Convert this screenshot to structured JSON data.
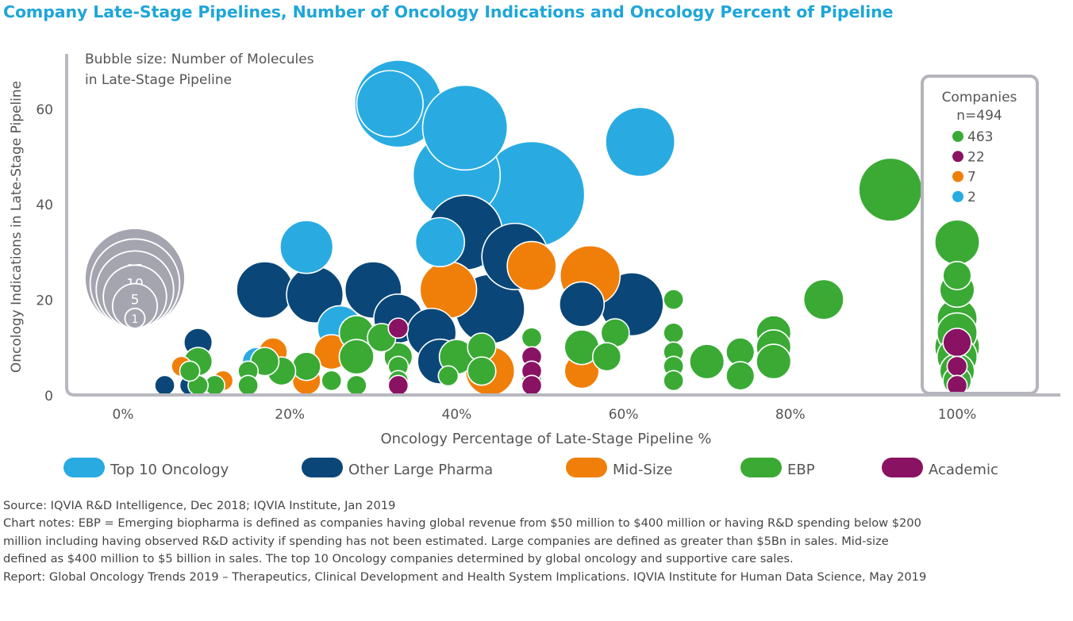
{
  "title": "Company Late-Stage Pipelines, Number of Oncology Indications and Oncology Percent of Pipeline",
  "colors": {
    "Top 10 Oncology": "#29abe2",
    "Other Large Pharma": "#0a4778",
    "Mid-Size": "#f07f09",
    "EBP": "#3aaa35",
    "Academic": "#891263",
    "size_key": "#a5a5b0",
    "box": "#b4b4bc",
    "axis": "#b8b8c0"
  },
  "chart_data": {
    "type": "scatter",
    "subtype": "bubble",
    "xlabel": "Oncology Percentage of Late-Stage Pipeline %",
    "ylabel": "Oncology Indications in Late-Stage Pipeline",
    "xlim": [
      -0.06,
      1.11
    ],
    "ylim": [
      0,
      72
    ],
    "x_ticks": [
      0,
      0.2,
      0.4,
      0.6,
      0.8,
      1.0
    ],
    "x_tick_labels": [
      "0%",
      "20%",
      "40%",
      "60%",
      "80%",
      "100%"
    ],
    "y_ticks": [
      0,
      20,
      40,
      60
    ],
    "y_tick_labels": [
      "0",
      "20",
      "40",
      "60"
    ],
    "size_legend": {
      "title_line1": "Bubble size: Number of Molecules",
      "title_line2": "in Late-Stage Pipeline",
      "sizes": [
        25,
        20,
        15,
        10,
        5,
        1
      ]
    },
    "companies_box": {
      "title": "Companies",
      "total": "n=494",
      "counts": [
        {
          "series": "EBP",
          "value": "463"
        },
        {
          "series": "Academic",
          "value": "22"
        },
        {
          "series": "Mid-Size",
          "value": "7"
        },
        {
          "series": "Top 10 Oncology",
          "value": "2"
        }
      ]
    },
    "series": [
      {
        "name": "Top 10 Oncology",
        "points": [
          {
            "x": 0.33,
            "y": 61,
            "molecules": 19
          },
          {
            "x": 0.32,
            "y": 61,
            "molecules": 11
          },
          {
            "x": 0.41,
            "y": 56,
            "molecules": 18
          },
          {
            "x": 0.4,
            "y": 46,
            "molecules": 19
          },
          {
            "x": 0.49,
            "y": 42,
            "molecules": 28
          },
          {
            "x": 0.62,
            "y": 53,
            "molecules": 12
          },
          {
            "x": 0.38,
            "y": 32,
            "molecules": 6
          },
          {
            "x": 0.22,
            "y": 31,
            "molecules": 7
          },
          {
            "x": 0.26,
            "y": 14,
            "molecules": 5
          },
          {
            "x": 0.16,
            "y": 7,
            "molecules": 2
          }
        ]
      },
      {
        "name": "Other Large Pharma",
        "points": [
          {
            "x": 0.41,
            "y": 34,
            "molecules": 14
          },
          {
            "x": 0.47,
            "y": 29,
            "molecules": 11
          },
          {
            "x": 0.44,
            "y": 18,
            "molecules": 12
          },
          {
            "x": 0.17,
            "y": 22,
            "molecules": 8
          },
          {
            "x": 0.23,
            "y": 21,
            "molecules": 8
          },
          {
            "x": 0.3,
            "y": 22,
            "molecules": 8
          },
          {
            "x": 0.33,
            "y": 16,
            "molecules": 6
          },
          {
            "x": 0.37,
            "y": 13,
            "molecules": 6
          },
          {
            "x": 0.38,
            "y": 7,
            "molecules": 5
          },
          {
            "x": 0.55,
            "y": 19,
            "molecules": 5
          },
          {
            "x": 0.61,
            "y": 19,
            "molecules": 10
          },
          {
            "x": 0.09,
            "y": 11,
            "molecules": 2
          },
          {
            "x": 0.05,
            "y": 2,
            "molecules": 1
          },
          {
            "x": 0.08,
            "y": 2,
            "molecules": 1
          }
        ]
      },
      {
        "name": "Mid-Size",
        "points": [
          {
            "x": 0.49,
            "y": 27,
            "molecules": 6
          },
          {
            "x": 0.56,
            "y": 25,
            "molecules": 9
          },
          {
            "x": 0.39,
            "y": 22,
            "molecules": 8
          },
          {
            "x": 0.44,
            "y": 5,
            "molecules": 6
          },
          {
            "x": 0.55,
            "y": 5,
            "molecules": 3
          },
          {
            "x": 0.25,
            "y": 9,
            "molecules": 3
          },
          {
            "x": 0.18,
            "y": 9,
            "molecules": 2
          },
          {
            "x": 0.07,
            "y": 6,
            "molecules": 1
          },
          {
            "x": 0.12,
            "y": 3,
            "molecules": 1
          },
          {
            "x": 0.22,
            "y": 3,
            "molecules": 2
          }
        ]
      },
      {
        "name": "EBP",
        "points": [
          {
            "x": 0.92,
            "y": 43,
            "molecules": 10
          },
          {
            "x": 1.0,
            "y": 32,
            "molecules": 5
          },
          {
            "x": 1.0,
            "y": 25,
            "molecules": 2
          },
          {
            "x": 1.0,
            "y": 22,
            "molecules": 3
          },
          {
            "x": 1.0,
            "y": 16,
            "molecules": 4
          },
          {
            "x": 1.0,
            "y": 13,
            "molecules": 4
          },
          {
            "x": 1.0,
            "y": 10,
            "molecules": 5
          },
          {
            "x": 1.0,
            "y": 8,
            "molecules": 4
          },
          {
            "x": 1.0,
            "y": 5,
            "molecules": 3
          },
          {
            "x": 1.0,
            "y": 3,
            "molecules": 2
          },
          {
            "x": 0.84,
            "y": 20,
            "molecules": 4
          },
          {
            "x": 0.78,
            "y": 13,
            "molecules": 3
          },
          {
            "x": 0.78,
            "y": 10,
            "molecules": 3
          },
          {
            "x": 0.78,
            "y": 7,
            "molecules": 3
          },
          {
            "x": 0.74,
            "y": 9,
            "molecules": 2
          },
          {
            "x": 0.74,
            "y": 4,
            "molecules": 2
          },
          {
            "x": 0.7,
            "y": 7,
            "molecules": 3
          },
          {
            "x": 0.66,
            "y": 20,
            "molecules": 1
          },
          {
            "x": 0.66,
            "y": 13,
            "molecules": 1
          },
          {
            "x": 0.66,
            "y": 9,
            "molecules": 1
          },
          {
            "x": 0.66,
            "y": 6,
            "molecules": 1
          },
          {
            "x": 0.66,
            "y": 3,
            "molecules": 1
          },
          {
            "x": 0.59,
            "y": 13,
            "molecules": 2
          },
          {
            "x": 0.58,
            "y": 8,
            "molecules": 2
          },
          {
            "x": 0.55,
            "y": 10,
            "molecules": 3
          },
          {
            "x": 0.49,
            "y": 12,
            "molecules": 1
          },
          {
            "x": 0.49,
            "y": 8,
            "molecules": 1
          },
          {
            "x": 0.49,
            "y": 3,
            "molecules": 1
          },
          {
            "x": 0.43,
            "y": 10,
            "molecules": 2
          },
          {
            "x": 0.43,
            "y": 5,
            "molecules": 2
          },
          {
            "x": 0.4,
            "y": 8,
            "molecules": 3
          },
          {
            "x": 0.39,
            "y": 4,
            "molecules": 1
          },
          {
            "x": 0.33,
            "y": 8,
            "molecules": 2
          },
          {
            "x": 0.33,
            "y": 6,
            "molecules": 1
          },
          {
            "x": 0.33,
            "y": 3,
            "molecules": 1
          },
          {
            "x": 0.31,
            "y": 12,
            "molecules": 2
          },
          {
            "x": 0.28,
            "y": 13,
            "molecules": 3
          },
          {
            "x": 0.28,
            "y": 8,
            "molecules": 3
          },
          {
            "x": 0.28,
            "y": 2,
            "molecules": 1
          },
          {
            "x": 0.22,
            "y": 6,
            "molecules": 2
          },
          {
            "x": 0.25,
            "y": 3,
            "molecules": 1
          },
          {
            "x": 0.19,
            "y": 5,
            "molecules": 2
          },
          {
            "x": 0.17,
            "y": 7,
            "molecules": 2
          },
          {
            "x": 0.15,
            "y": 5,
            "molecules": 1
          },
          {
            "x": 0.15,
            "y": 2,
            "molecules": 1
          },
          {
            "x": 0.11,
            "y": 2,
            "molecules": 1
          },
          {
            "x": 0.09,
            "y": 2,
            "molecules": 1
          },
          {
            "x": 0.09,
            "y": 7,
            "molecules": 2
          },
          {
            "x": 0.08,
            "y": 5,
            "molecules": 1
          }
        ]
      },
      {
        "name": "Academic",
        "points": [
          {
            "x": 1.0,
            "y": 11,
            "molecules": 2
          },
          {
            "x": 1.0,
            "y": 6,
            "molecules": 1
          },
          {
            "x": 1.0,
            "y": 2,
            "molecules": 1
          },
          {
            "x": 0.49,
            "y": 8,
            "molecules": 1
          },
          {
            "x": 0.49,
            "y": 5,
            "molecules": 1
          },
          {
            "x": 0.49,
            "y": 2,
            "molecules": 1
          },
          {
            "x": 0.33,
            "y": 14,
            "molecules": 1
          },
          {
            "x": 0.33,
            "y": 2,
            "molecules": 1
          }
        ]
      }
    ]
  },
  "legend": {
    "items": [
      "Top 10 Oncology",
      "Other Large Pharma",
      "Mid-Size",
      "EBP",
      "Academic"
    ]
  },
  "notes": {
    "source": "Source: IQVIA R&D Intelligence, Dec 2018; IQVIA Institute, Jan 2019",
    "chart_notes_line1": "Chart notes: EBP = Emerging biopharma is defined as companies having global revenue from $50 million to $400 million or having R&D spending below $200",
    "chart_notes_line2": "million including having observed R&D activity if spending has not been estimated. Large companies are defined as greater than $5Bn in sales. Mid-size",
    "chart_notes_line3": "defined as $400 million to $5 billion in sales. The top 10 Oncology companies determined by global oncology and supportive care sales.",
    "report": "Report: Global Oncology Trends 2019 – Therapeutics, Clinical Development and Health System Implications. IQVIA Institute for Human Data Science, May 2019"
  }
}
